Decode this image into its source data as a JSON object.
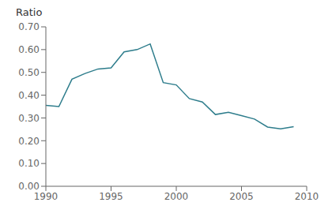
{
  "chart_data": {
    "type": "line",
    "ylabel": "Ratio",
    "x": [
      1990,
      1991,
      1992,
      1993,
      1994,
      1995,
      1996,
      1997,
      1998,
      1999,
      2000,
      2001,
      2002,
      2003,
      2004,
      2005,
      2006,
      2007,
      2008,
      2009
    ],
    "values": [
      0.355,
      0.35,
      0.47,
      0.495,
      0.515,
      0.52,
      0.59,
      0.6,
      0.625,
      0.455,
      0.445,
      0.385,
      0.37,
      0.315,
      0.325,
      0.31,
      0.295,
      0.26,
      0.252,
      0.262
    ],
    "color": "#2e7d8c",
    "xlim": [
      1990,
      2010
    ],
    "ylim": [
      0.0,
      0.7
    ],
    "xticks": [
      1990,
      1995,
      2000,
      2005,
      2010
    ],
    "yticks": [
      {
        "value": 0.0,
        "label": "0.00"
      },
      {
        "value": 0.1,
        "label": "0.10"
      },
      {
        "value": 0.2,
        "label": "0.20"
      },
      {
        "value": 0.3,
        "label": "0.30"
      },
      {
        "value": 0.4,
        "label": "0.40"
      },
      {
        "value": 0.5,
        "label": "0.50"
      },
      {
        "value": 0.6,
        "label": "0.60"
      },
      {
        "value": 0.7,
        "label": "0.70"
      }
    ],
    "grid": false
  }
}
